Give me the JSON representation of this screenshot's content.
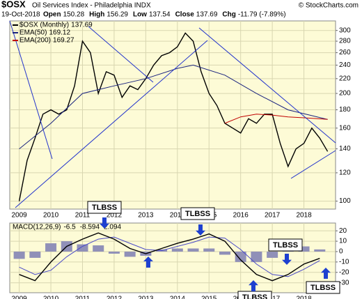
{
  "header": {
    "symbol": "$OSX",
    "name": "Oil Services Index - Philadelphia INDX",
    "source": "© StockCharts.com",
    "date": "19-Oct-2018",
    "stats": [
      {
        "label": "Open",
        "value": "150.28"
      },
      {
        "label": "High",
        "value": "156.29"
      },
      {
        "label": "Low",
        "value": "137.54"
      },
      {
        "label": "Close",
        "value": "137.69"
      },
      {
        "label": "Chg",
        "value": "-11.79 (-7.89%)"
      }
    ]
  },
  "annotations": [
    "TLBSS",
    "TLBSS",
    "TLBSS",
    "TLBSS",
    "TLBSS"
  ],
  "chart_data": [
    {
      "type": "line",
      "log_scale": true,
      "grid": true,
      "xlim": [
        2008.7,
        2019.0
      ],
      "xticks": [
        2009,
        2010,
        2011,
        2012,
        2013,
        2014,
        2015,
        2016,
        2017,
        2018
      ],
      "ylim": [
        95,
        319
      ],
      "yticks": [
        100,
        120,
        140,
        160,
        180,
        200,
        220,
        240,
        260,
        280,
        300
      ],
      "series": [
        {
          "name": "$OSX (Monthly)",
          "color": "#000000",
          "x": [
            2009.0,
            2009.25,
            2009.5,
            2009.75,
            2010.0,
            2010.25,
            2010.5,
            2010.75,
            2011.0,
            2011.25,
            2011.5,
            2011.75,
            2012.0,
            2012.25,
            2012.5,
            2012.75,
            2013.0,
            2013.25,
            2013.5,
            2013.75,
            2014.0,
            2014.25,
            2014.5,
            2014.75,
            2015.0,
            2015.25,
            2015.5,
            2015.75,
            2016.0,
            2016.25,
            2016.5,
            2016.75,
            2017.0,
            2017.25,
            2017.5,
            2017.75,
            2018.0,
            2018.25,
            2018.5,
            2018.75
          ],
          "values": [
            100,
            130,
            150,
            175,
            180,
            175,
            180,
            210,
            280,
            260,
            200,
            230,
            225,
            195,
            210,
            205,
            220,
            240,
            255,
            260,
            270,
            295,
            280,
            230,
            200,
            185,
            165,
            160,
            155,
            170,
            165,
            175,
            175,
            145,
            125,
            140,
            145,
            160,
            150,
            137.69
          ]
        },
        {
          "name": "EMA(50)",
          "color": "#1a237e",
          "x": [
            2009.0,
            2010.0,
            2011.0,
            2012.0,
            2013.0,
            2014.0,
            2014.5,
            2015.5,
            2016.5,
            2017.5,
            2018.75
          ],
          "values": [
            140,
            165,
            200,
            210,
            220,
            235,
            240,
            225,
            200,
            180,
            169.12
          ]
        },
        {
          "name": "EMA(200)",
          "color": "#c00000",
          "x": [
            2015.5,
            2016.0,
            2016.5,
            2017.0,
            2017.5,
            2018.0,
            2018.75
          ],
          "values": [
            165,
            172,
            175,
            174,
            172,
            171,
            169.27
          ]
        }
      ]
    },
    {
      "type": "macd",
      "title": "MACD(12,26,9)",
      "grid": true,
      "xlim": [
        2008.7,
        2019.0
      ],
      "xticks": [
        2009,
        2010,
        2011,
        2012,
        2013,
        2014,
        2015,
        2016,
        2017,
        2018
      ],
      "ylim": [
        -39.6,
        27.5
      ],
      "yticks": [
        20,
        10,
        0,
        -10,
        -20,
        -30
      ],
      "x": [
        2009.0,
        2009.5,
        2010.0,
        2010.5,
        2011.0,
        2011.5,
        2012.0,
        2012.5,
        2013.0,
        2013.5,
        2014.0,
        2014.5,
        2015.0,
        2015.5,
        2016.0,
        2016.5,
        2017.0,
        2017.5,
        2018.0,
        2018.5
      ],
      "macd": [
        -22,
        -28,
        -10,
        5,
        12,
        18,
        12,
        3,
        -2,
        3,
        8,
        12,
        17,
        10,
        -8,
        -22,
        -28,
        -22,
        -12,
        -6.5
      ],
      "signal": [
        -15,
        -22,
        -18,
        -5,
        5,
        12,
        14,
        8,
        2,
        1,
        5,
        9,
        14,
        13,
        2,
        -12,
        -22,
        -24,
        -17,
        -8.594
      ],
      "histogram": [
        -7,
        -6,
        8,
        10,
        7,
        6,
        -2,
        -5,
        -4,
        2,
        3,
        3,
        3,
        -3,
        -10,
        -10,
        -6,
        2,
        5,
        2.094
      ],
      "macd_color": "#000000",
      "signal_color": "#4a4ac8",
      "histogram_color": "#9090b8"
    }
  ]
}
